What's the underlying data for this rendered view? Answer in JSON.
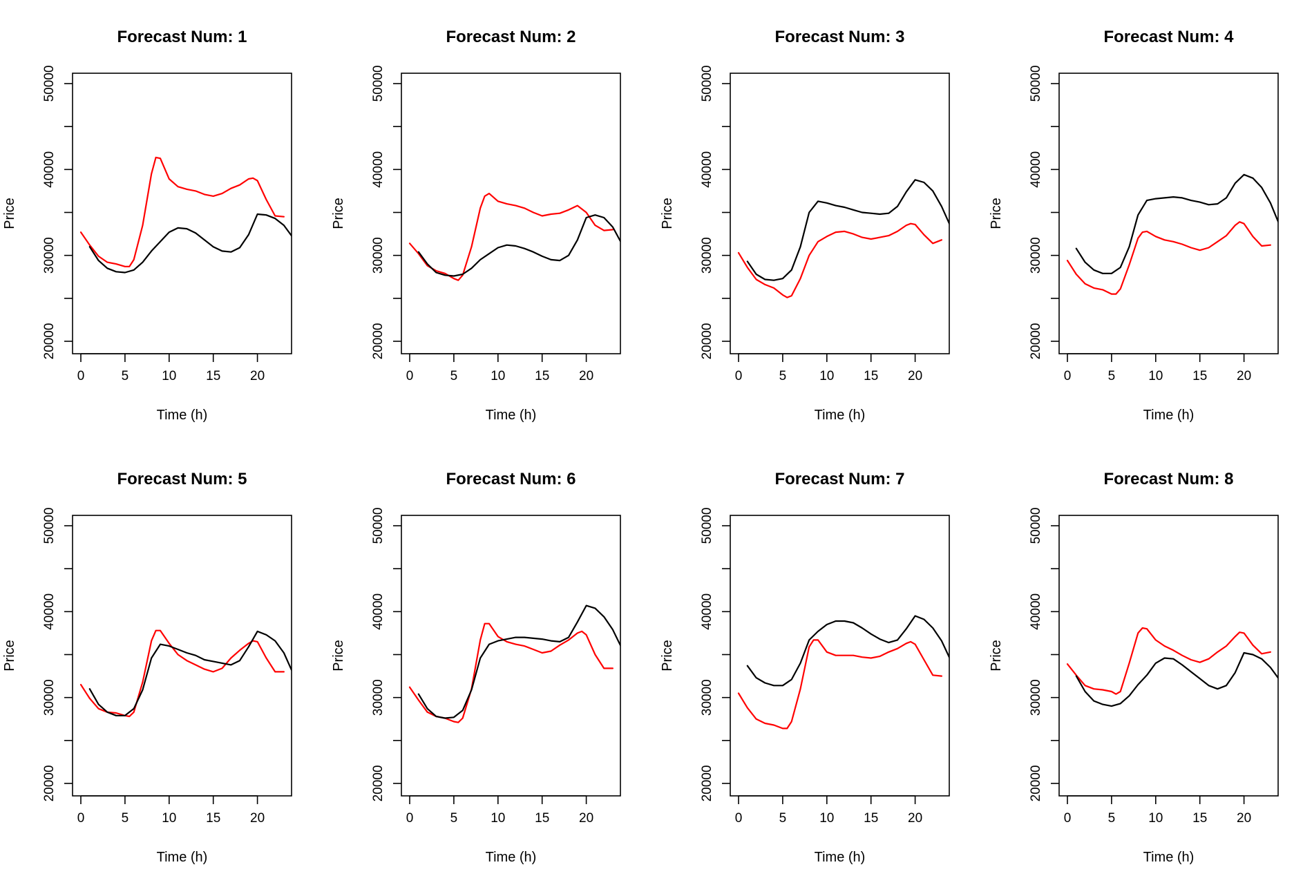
{
  "colors": {
    "actual": "#000000",
    "forecast": "#ff0000",
    "background": "#ffffff"
  },
  "chart_data": [
    {
      "type": "line",
      "title": "Forecast Num: 1",
      "xlabel": "Time (h)",
      "ylabel": "Price",
      "xlim": [
        0,
        24
      ],
      "ylim": [
        20000,
        50000
      ],
      "xticks": [
        0,
        5,
        10,
        15,
        20
      ],
      "yticks": [
        20000,
        30000,
        40000,
        50000
      ],
      "grid": false,
      "legend": "none",
      "series": [
        {
          "color": "#ff0000",
          "x": [
            0,
            1,
            2,
            3,
            4,
            5,
            5.5,
            6,
            7,
            8,
            8.5,
            9,
            10,
            11,
            12,
            13,
            14,
            15,
            16,
            17,
            18,
            19,
            19.5,
            20,
            21,
            22,
            23
          ],
          "values": [
            32700,
            31200,
            29900,
            29200,
            29000,
            28700,
            28700,
            29500,
            33500,
            39500,
            41400,
            41300,
            38900,
            38000,
            37700,
            37500,
            37100,
            36900,
            37200,
            37800,
            38200,
            38900,
            39000,
            38700,
            36500,
            34600,
            34500
          ]
        },
        {
          "color": "#000000",
          "x": [
            1,
            2,
            3,
            4,
            5,
            6,
            7,
            8,
            9,
            10,
            11,
            12,
            13,
            14,
            15,
            16,
            17,
            18,
            19,
            20,
            21,
            22,
            23,
            24
          ],
          "values": [
            31000,
            29400,
            28500,
            28100,
            28000,
            28300,
            29200,
            30500,
            31600,
            32700,
            33200,
            33100,
            32600,
            31800,
            31000,
            30500,
            30400,
            30900,
            32400,
            34800,
            34700,
            34300,
            33500,
            32100
          ]
        }
      ]
    },
    {
      "type": "line",
      "title": "Forecast Num: 2",
      "xlabel": "Time (h)",
      "ylabel": "Price",
      "xlim": [
        0,
        24
      ],
      "ylim": [
        20000,
        50000
      ],
      "xticks": [
        0,
        5,
        10,
        15,
        20
      ],
      "yticks": [
        20000,
        30000,
        40000,
        50000
      ],
      "grid": false,
      "legend": "none",
      "series": [
        {
          "color": "#ff0000",
          "x": [
            0,
            1,
            2,
            3,
            4,
            5,
            5.5,
            6,
            7,
            8,
            8.5,
            9,
            10,
            11,
            12,
            13,
            14,
            15,
            16,
            17,
            18,
            19,
            20,
            21,
            22,
            23
          ],
          "values": [
            31400,
            30200,
            28800,
            28200,
            27900,
            27300,
            27100,
            27700,
            31000,
            35500,
            36900,
            37200,
            36300,
            36000,
            35800,
            35500,
            35000,
            34600,
            34800,
            34900,
            35300,
            35800,
            35000,
            33500,
            32900,
            33000
          ]
        },
        {
          "color": "#000000",
          "x": [
            1,
            2,
            3,
            4,
            5,
            6,
            7,
            8,
            9,
            10,
            11,
            12,
            13,
            14,
            15,
            16,
            17,
            18,
            19,
            20,
            21,
            22,
            23,
            24
          ],
          "values": [
            30400,
            29000,
            28000,
            27700,
            27600,
            27800,
            28500,
            29500,
            30200,
            30900,
            31200,
            31100,
            30800,
            30400,
            29900,
            29500,
            29400,
            30000,
            31800,
            34400,
            34700,
            34400,
            33300,
            31400
          ]
        }
      ]
    },
    {
      "type": "line",
      "title": "Forecast Num: 3",
      "xlabel": "Time (h)",
      "ylabel": "Price",
      "xlim": [
        0,
        24
      ],
      "ylim": [
        20000,
        50000
      ],
      "xticks": [
        0,
        5,
        10,
        15,
        20
      ],
      "yticks": [
        20000,
        30000,
        40000,
        50000
      ],
      "grid": false,
      "legend": "none",
      "series": [
        {
          "color": "#ff0000",
          "x": [
            0,
            1,
            2,
            3,
            4,
            5,
            5.5,
            6,
            7,
            8,
            9,
            10,
            11,
            12,
            13,
            14,
            15,
            16,
            17,
            18,
            19,
            19.5,
            20,
            21,
            22,
            23
          ],
          "values": [
            30300,
            28600,
            27200,
            26600,
            26200,
            25400,
            25100,
            25300,
            27300,
            30000,
            31600,
            32200,
            32700,
            32800,
            32500,
            32100,
            31900,
            32100,
            32300,
            32800,
            33500,
            33700,
            33600,
            32400,
            31400,
            31800
          ]
        },
        {
          "color": "#000000",
          "x": [
            1,
            2,
            3,
            4,
            5,
            6,
            7,
            8,
            9,
            10,
            11,
            12,
            13,
            14,
            15,
            16,
            17,
            18,
            19,
            20,
            21,
            22,
            23,
            24
          ],
          "values": [
            29300,
            27800,
            27200,
            27100,
            27300,
            28300,
            31000,
            35000,
            36300,
            36100,
            35800,
            35600,
            35300,
            35000,
            34900,
            34800,
            34900,
            35700,
            37400,
            38800,
            38500,
            37500,
            35700,
            33400
          ]
        }
      ]
    },
    {
      "type": "line",
      "title": "Forecast Num: 4",
      "xlabel": "Time (h)",
      "ylabel": "Price",
      "xlim": [
        0,
        24
      ],
      "ylim": [
        20000,
        50000
      ],
      "xticks": [
        0,
        5,
        10,
        15,
        20
      ],
      "yticks": [
        20000,
        30000,
        40000,
        50000
      ],
      "grid": false,
      "legend": "none",
      "series": [
        {
          "color": "#ff0000",
          "x": [
            0,
            1,
            2,
            3,
            4,
            5,
            5.5,
            6,
            7,
            8,
            8.5,
            9,
            10,
            11,
            12,
            13,
            14,
            15,
            16,
            17,
            18,
            19,
            19.5,
            20,
            21,
            22,
            23
          ],
          "values": [
            29400,
            27800,
            26700,
            26200,
            26000,
            25500,
            25500,
            26100,
            28900,
            32000,
            32700,
            32800,
            32200,
            31800,
            31600,
            31300,
            30900,
            30600,
            30900,
            31600,
            32300,
            33500,
            33900,
            33700,
            32200,
            31100,
            31200
          ]
        },
        {
          "color": "#000000",
          "x": [
            1,
            2,
            3,
            4,
            5,
            6,
            7,
            8,
            9,
            10,
            11,
            12,
            13,
            14,
            15,
            16,
            17,
            18,
            19,
            20,
            21,
            22,
            23,
            24
          ],
          "values": [
            30800,
            29200,
            28300,
            27900,
            27900,
            28600,
            31000,
            34700,
            36400,
            36600,
            36700,
            36800,
            36700,
            36400,
            36200,
            35900,
            36000,
            36700,
            38400,
            39400,
            39000,
            37900,
            36100,
            33600
          ]
        }
      ]
    },
    {
      "type": "line",
      "title": "Forecast Num: 5",
      "xlabel": "Time (h)",
      "ylabel": "Price",
      "xlim": [
        0,
        24
      ],
      "ylim": [
        20000,
        50000
      ],
      "xticks": [
        0,
        5,
        10,
        15,
        20
      ],
      "yticks": [
        20000,
        30000,
        40000,
        50000
      ],
      "grid": false,
      "legend": "none",
      "series": [
        {
          "color": "#ff0000",
          "x": [
            0,
            1,
            2,
            3,
            4,
            5,
            5.5,
            6,
            7,
            8,
            8.5,
            9,
            10,
            11,
            12,
            13,
            14,
            15,
            16,
            17,
            18,
            19,
            19.5,
            20,
            21,
            22,
            23
          ],
          "values": [
            31500,
            29900,
            28700,
            28300,
            28200,
            27900,
            27800,
            28300,
            31800,
            36600,
            37800,
            37800,
            36300,
            35000,
            34300,
            33800,
            33300,
            33000,
            33400,
            34600,
            35500,
            36300,
            36600,
            36500,
            34600,
            33000,
            33000
          ]
        },
        {
          "color": "#000000",
          "x": [
            1,
            2,
            3,
            4,
            5,
            6,
            7,
            8,
            9,
            10,
            11,
            12,
            13,
            14,
            15,
            16,
            17,
            18,
            19,
            20,
            21,
            22,
            23,
            24
          ],
          "values": [
            31000,
            29200,
            28300,
            27900,
            27900,
            28700,
            30900,
            34600,
            36200,
            36000,
            35600,
            35200,
            34900,
            34400,
            34200,
            34000,
            33800,
            34300,
            35900,
            37700,
            37300,
            36600,
            35200,
            32900
          ]
        }
      ]
    },
    {
      "type": "line",
      "title": "Forecast Num: 6",
      "xlabel": "Time (h)",
      "ylabel": "Price",
      "xlim": [
        0,
        24
      ],
      "ylim": [
        20000,
        50000
      ],
      "xticks": [
        0,
        5,
        10,
        15,
        20
      ],
      "yticks": [
        20000,
        30000,
        40000,
        50000
      ],
      "grid": false,
      "legend": "none",
      "series": [
        {
          "color": "#ff0000",
          "x": [
            0,
            1,
            2,
            3,
            4,
            5,
            5.5,
            6,
            7,
            8,
            8.5,
            9,
            10,
            11,
            12,
            13,
            14,
            15,
            16,
            17,
            18,
            19,
            19.5,
            20,
            21,
            22,
            23
          ],
          "values": [
            31200,
            29700,
            28300,
            27800,
            27600,
            27200,
            27100,
            27600,
            31000,
            36700,
            38600,
            38600,
            37100,
            36500,
            36200,
            36000,
            35600,
            35200,
            35400,
            36100,
            36700,
            37500,
            37700,
            37300,
            35000,
            33400,
            33400
          ]
        },
        {
          "color": "#000000",
          "x": [
            1,
            2,
            3,
            4,
            5,
            6,
            7,
            8,
            9,
            10,
            11,
            12,
            13,
            14,
            15,
            16,
            17,
            18,
            19,
            20,
            21,
            22,
            23,
            24
          ],
          "values": [
            30400,
            28700,
            27800,
            27600,
            27700,
            28500,
            30900,
            34600,
            36200,
            36600,
            36800,
            37000,
            37000,
            36900,
            36800,
            36600,
            36500,
            37000,
            38800,
            40700,
            40400,
            39400,
            37900,
            35800
          ]
        }
      ]
    },
    {
      "type": "line",
      "title": "Forecast Num: 7",
      "xlabel": "Time (h)",
      "ylabel": "Price",
      "xlim": [
        0,
        24
      ],
      "ylim": [
        20000,
        50000
      ],
      "xticks": [
        0,
        5,
        10,
        15,
        20
      ],
      "yticks": [
        20000,
        30000,
        40000,
        50000
      ],
      "grid": false,
      "legend": "none",
      "series": [
        {
          "color": "#ff0000",
          "x": [
            0,
            1,
            2,
            3,
            4,
            5,
            5.5,
            6,
            7,
            8,
            8.5,
            9,
            10,
            11,
            12,
            13,
            14,
            15,
            16,
            17,
            18,
            19,
            19.5,
            20,
            21,
            22,
            23
          ],
          "values": [
            30500,
            28800,
            27500,
            27000,
            26800,
            26400,
            26400,
            27200,
            31000,
            35900,
            36700,
            36700,
            35300,
            34900,
            34900,
            34900,
            34700,
            34600,
            34800,
            35300,
            35700,
            36300,
            36500,
            36200,
            34400,
            32600,
            32500
          ]
        },
        {
          "color": "#000000",
          "x": [
            1,
            2,
            3,
            4,
            5,
            6,
            7,
            8,
            9,
            10,
            11,
            12,
            13,
            14,
            15,
            16,
            17,
            18,
            19,
            20,
            21,
            22,
            23,
            24
          ],
          "values": [
            33700,
            32300,
            31700,
            31400,
            31400,
            32100,
            34000,
            36700,
            37700,
            38500,
            38900,
            38900,
            38700,
            38100,
            37400,
            36800,
            36400,
            36700,
            38000,
            39500,
            39100,
            38100,
            36600,
            34400
          ]
        }
      ]
    },
    {
      "type": "line",
      "title": "Forecast Num: 8",
      "xlabel": "Time (h)",
      "ylabel": "Price",
      "xlim": [
        0,
        24
      ],
      "ylim": [
        20000,
        50000
      ],
      "xticks": [
        0,
        5,
        10,
        15,
        20
      ],
      "yticks": [
        20000,
        30000,
        40000,
        50000
      ],
      "grid": false,
      "legend": "none",
      "series": [
        {
          "color": "#ff0000",
          "x": [
            0,
            1,
            2,
            3,
            4,
            5,
            5.5,
            6,
            7,
            8,
            8.5,
            9,
            10,
            11,
            12,
            13,
            14,
            15,
            16,
            17,
            18,
            19,
            19.5,
            20,
            21,
            22,
            23
          ],
          "values": [
            33900,
            32600,
            31400,
            31000,
            30900,
            30700,
            30400,
            30700,
            34000,
            37500,
            38100,
            38000,
            36700,
            36000,
            35500,
            34900,
            34400,
            34100,
            34500,
            35300,
            36000,
            37100,
            37600,
            37500,
            36100,
            35100,
            35300
          ]
        },
        {
          "color": "#000000",
          "x": [
            1,
            2,
            3,
            4,
            5,
            6,
            7,
            8,
            9,
            10,
            11,
            12,
            13,
            14,
            15,
            16,
            17,
            18,
            19,
            20,
            21,
            22,
            23,
            24
          ],
          "values": [
            32500,
            30700,
            29600,
            29200,
            29000,
            29300,
            30200,
            31500,
            32600,
            34000,
            34600,
            34500,
            33800,
            33000,
            32200,
            31400,
            31000,
            31400,
            32900,
            35200,
            35000,
            34500,
            33500,
            32100
          ]
        }
      ]
    }
  ]
}
